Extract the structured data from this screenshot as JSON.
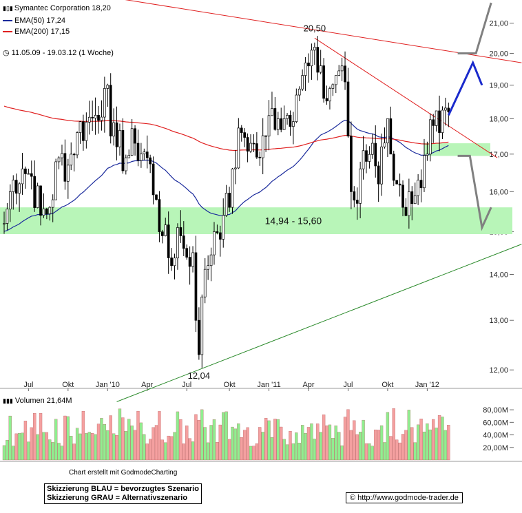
{
  "legend": {
    "title": "Symantec Corporation 18,20",
    "ema50": "EMA(50) 17,24",
    "ema200": "EMA(200) 17,15",
    "period": "11.05.09 - 19.03.12 (1 Woche)",
    "ema50_color": "#1a2a9c",
    "ema200_color": "#e02020"
  },
  "volume_legend": "Volumen 21,64M",
  "credit": "Chart erstellt mit GodmodeCharting",
  "scenario_blue": "Skizzierung BLAU = bevorzugtes Szenario",
  "scenario_grey": "Skizzierung GRAU = Alternativszenario",
  "copyright": "© http://www.godmode-trader.de",
  "chart_data": [
    {
      "type": "candlestick",
      "title": "Symantec Corporation",
      "y_ticks": [
        "21,00",
        "20,00",
        "19,00",
        "18,00",
        "17,00",
        "16,00",
        "15,00",
        "14,00",
        "13,00",
        "12,00"
      ],
      "y_tick_values": [
        21,
        20,
        19,
        18,
        17,
        16,
        15,
        14,
        13,
        12
      ],
      "ylim": [
        11.7,
        21.8
      ],
      "log_scale": true,
      "x_ticks": [
        "Jul",
        "Okt",
        "Jan '10",
        "Apr",
        "Jul",
        "Okt",
        "Jan '11",
        "Apr",
        "Jul",
        "Okt",
        "Jan '12"
      ],
      "x_tick_weeks": [
        8,
        21,
        34,
        47,
        60,
        74,
        87,
        100,
        113,
        126,
        139
      ],
      "close_anchors": [
        [
          0,
          15.2
        ],
        [
          3,
          16.3
        ],
        [
          6,
          16.6
        ],
        [
          9,
          16.4
        ],
        [
          12,
          15.4
        ],
        [
          15,
          15.6
        ],
        [
          18,
          16.9
        ],
        [
          21,
          16.7
        ],
        [
          24,
          17.6
        ],
        [
          27,
          17.9
        ],
        [
          30,
          18.1
        ],
        [
          33,
          18.9
        ],
        [
          34,
          19.0
        ],
        [
          35,
          17.5
        ],
        [
          37,
          17.2
        ],
        [
          40,
          16.9
        ],
        [
          43,
          17.3
        ],
        [
          47,
          16.9
        ],
        [
          50,
          15.8
        ],
        [
          52,
          14.9
        ],
        [
          55,
          14.2
        ],
        [
          57,
          15.1
        ],
        [
          59,
          14.6
        ],
        [
          62,
          14.5
        ],
        [
          63,
          13.0
        ],
        [
          64,
          12.3
        ],
        [
          65,
          13.5
        ],
        [
          67,
          14.2
        ],
        [
          69,
          15.0
        ],
        [
          72,
          15.4
        ],
        [
          74,
          15.6
        ],
        [
          75,
          16.6
        ],
        [
          78,
          17.6
        ],
        [
          81,
          17.3
        ],
        [
          84,
          16.9
        ],
        [
          86,
          17.5
        ],
        [
          88,
          18.3
        ],
        [
          90,
          18.0
        ],
        [
          93,
          18.1
        ],
        [
          96,
          18.7
        ],
        [
          98,
          19.3
        ],
        [
          100,
          19.6
        ],
        [
          102,
          20.2
        ],
        [
          103,
          19.4
        ],
        [
          105,
          18.6
        ],
        [
          107,
          18.9
        ],
        [
          109,
          19.3
        ],
        [
          111,
          19.6
        ],
        [
          112,
          19.1
        ],
        [
          113,
          17.5
        ],
        [
          114,
          16.0
        ],
        [
          116,
          15.7
        ],
        [
          117,
          16.6
        ],
        [
          119,
          16.8
        ],
        [
          121,
          17.3
        ],
        [
          123,
          16.2
        ],
        [
          124,
          17.2
        ],
        [
          126,
          18.0
        ],
        [
          127,
          17.0
        ],
        [
          129,
          16.2
        ],
        [
          131,
          15.6
        ],
        [
          133,
          16.0
        ],
        [
          135,
          15.9
        ],
        [
          137,
          16.1
        ],
        [
          139,
          17.0
        ],
        [
          141,
          17.8
        ],
        [
          143,
          17.6
        ],
        [
          146,
          18.2
        ]
      ],
      "labels": [
        {
          "text": "20,50",
          "week": 102,
          "value": 20.5
        },
        {
          "text": "12,04",
          "week": 64,
          "value": 12.04
        },
        {
          "text": "14,94 - 15,60",
          "week": 95,
          "value": 15.27
        }
      ],
      "support_zones": [
        {
          "from": 14.94,
          "to": 15.6,
          "label": "14,94 - 15,60",
          "color": "#b8f5b8"
        },
        {
          "from": 16.95,
          "to": 17.3,
          "label": "",
          "color": "#b8f5b8"
        }
      ],
      "trendlines": [
        {
          "name": "upper-red",
          "color": "#e02020",
          "points": [
            [
              0,
              22.5
            ],
            [
              170,
              19.7
            ]
          ]
        },
        {
          "name": "falling-red",
          "color": "#e02020",
          "points": [
            [
              102,
              20.5
            ],
            [
              162,
              16.9
            ]
          ]
        },
        {
          "name": "rising-green",
          "color": "#2a8a2a",
          "points": [
            [
              37,
              11.4
            ],
            [
              170,
              14.7
            ]
          ]
        }
      ],
      "scenario_blue": [
        [
          146,
          18.1
        ],
        [
          154,
          19.7
        ],
        [
          157,
          19.0
        ]
      ],
      "scenario_grey_up": [
        [
          149,
          20.0
        ],
        [
          155,
          20.0
        ],
        [
          160,
          21.7
        ]
      ],
      "scenario_grey_down": [
        [
          149,
          16.95
        ],
        [
          153,
          16.95
        ],
        [
          157,
          15.1
        ],
        [
          160,
          15.6
        ]
      ]
    },
    {
      "type": "bar",
      "title": "Volumen 21,64M",
      "y_ticks": [
        "80,00M",
        "60,00M",
        "40,00M",
        "20,00M"
      ],
      "y_tick_values": [
        80,
        60,
        40,
        20
      ],
      "ylim": [
        0,
        90
      ],
      "unit": "M",
      "colors": {
        "up": "#90ee90",
        "down": "#f4a0a0"
      }
    }
  ]
}
